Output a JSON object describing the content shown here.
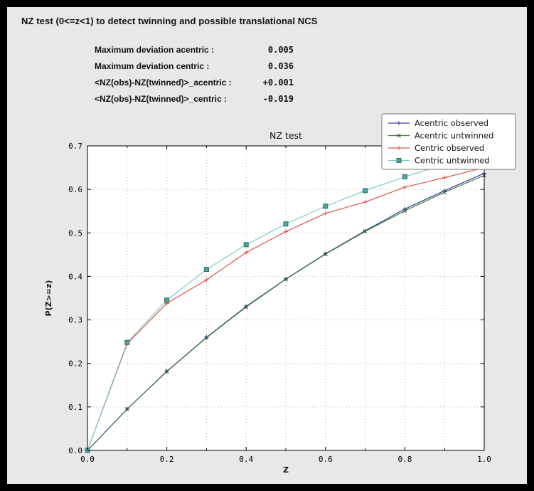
{
  "header": {
    "title": "NZ test (0<=z<1) to detect twinning and possible translational NCS"
  },
  "stats": [
    {
      "label": "Maximum deviation acentric :",
      "value": "0.005"
    },
    {
      "label": "Maximum deviation centric :",
      "value": "0.036"
    },
    {
      "label": "<NZ(obs)-NZ(twinned)>_acentric :",
      "value": "+0.001"
    },
    {
      "label": "<NZ(obs)-NZ(twinned)>_centric :",
      "value": "-0.019"
    }
  ],
  "chart_data": {
    "type": "line",
    "title": "NZ test",
    "xlabel": "Z",
    "ylabel": "P(Z>=z)",
    "xlim": [
      0.0,
      1.0
    ],
    "ylim": [
      0.0,
      0.7
    ],
    "xticks_major": [
      0.0,
      0.2,
      0.4,
      0.6,
      0.8,
      1.0
    ],
    "xticks_minor": [
      0.1,
      0.3,
      0.5,
      0.7,
      0.9
    ],
    "yticks": [
      0.0,
      0.1,
      0.2,
      0.3,
      0.4,
      0.5,
      0.6,
      0.7
    ],
    "grid": "dotted",
    "legend_position": "top-right",
    "x": [
      0.0,
      0.1,
      0.2,
      0.3,
      0.4,
      0.5,
      0.6,
      0.7,
      0.8,
      0.9,
      1.0
    ],
    "series": [
      {
        "name": "Acentric observed",
        "color": "#2d3c9b",
        "marker": "plus",
        "marker_color": "#2d3c9b",
        "values": [
          0.0,
          0.095,
          0.182,
          0.26,
          0.331,
          0.394,
          0.452,
          0.505,
          0.555,
          0.597,
          0.637
        ]
      },
      {
        "name": "Acentric untwinned",
        "color": "#467a3d",
        "marker": "x",
        "marker_color": "#2f5c2a",
        "values": [
          0.0,
          0.0952,
          0.1813,
          0.2592,
          0.3297,
          0.3935,
          0.4512,
          0.5034,
          0.5507,
          0.5934,
          0.6321
        ]
      },
      {
        "name": "Centric observed",
        "color": "#e0554d",
        "marker": "plus",
        "marker_color": "#e0554d",
        "values": [
          0.0,
          0.245,
          0.338,
          0.392,
          0.455,
          0.503,
          0.545,
          0.571,
          0.605,
          0.627,
          0.65
        ]
      },
      {
        "name": "Centric untwinned",
        "color": "#79ccc5",
        "marker": "square",
        "marker_color": "#4fa49d",
        "marker_edge": "#2e6e69",
        "values": [
          0.0,
          0.2481,
          0.3453,
          0.4161,
          0.4729,
          0.5205,
          0.5614,
          0.5972,
          0.6289,
          0.6572,
          0.6827
        ]
      }
    ]
  }
}
